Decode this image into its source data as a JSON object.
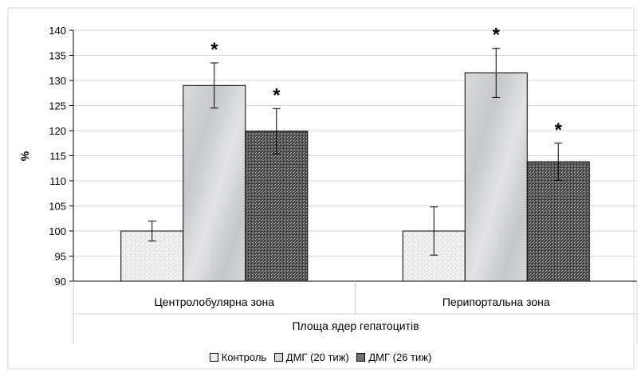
{
  "chart_data": {
    "type": "bar",
    "ylabel": "%",
    "xlabel": "Площа ядер гепатоцитів",
    "categories": [
      "Центролобулярна зона",
      "Перипортальна зона"
    ],
    "ylim": [
      90,
      140
    ],
    "yticks": [
      90,
      95,
      100,
      105,
      110,
      115,
      120,
      125,
      130,
      135,
      140
    ],
    "grid": true,
    "legend_position": "bottom",
    "significance_marker": "*",
    "series": [
      {
        "name": "Контроль",
        "values": [
          100.0,
          100.0
        ],
        "errors": [
          2.0,
          4.8
        ],
        "significant": [
          false,
          false
        ],
        "color": "#ebebeb"
      },
      {
        "name": "ДМГ (20 тиж)",
        "values": [
          129.0,
          131.5
        ],
        "errors": [
          4.5,
          4.9
        ],
        "significant": [
          true,
          true
        ],
        "color": "#d2d4d6"
      },
      {
        "name": "ДМГ (26 тиж)",
        "values": [
          119.9,
          113.8
        ],
        "errors": [
          4.5,
          3.7
        ],
        "significant": [
          true,
          true
        ],
        "color": "#5a5a5a"
      }
    ]
  }
}
